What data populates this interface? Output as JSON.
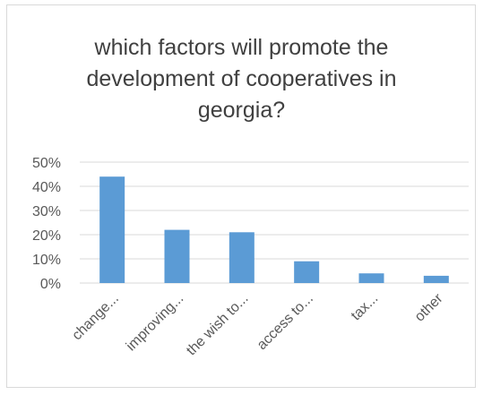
{
  "chart_data": {
    "type": "bar",
    "title_lines": [
      "which factors will  promote the",
      "development of cooperatives in",
      "georgia?"
    ],
    "categories": [
      "change...",
      "improving...",
      "the wish to...",
      "access to...",
      "tax...",
      "other"
    ],
    "values": [
      44,
      22,
      21,
      9,
      4,
      3
    ],
    "y_ticks": [
      "0%",
      "10%",
      "20%",
      "30%",
      "40%",
      "50%"
    ],
    "ylim": [
      0,
      50
    ],
    "unit": "%",
    "grid": true,
    "legend": "none",
    "bar_color": "#5b9bd5",
    "grid_color": "#d9d9d9"
  }
}
